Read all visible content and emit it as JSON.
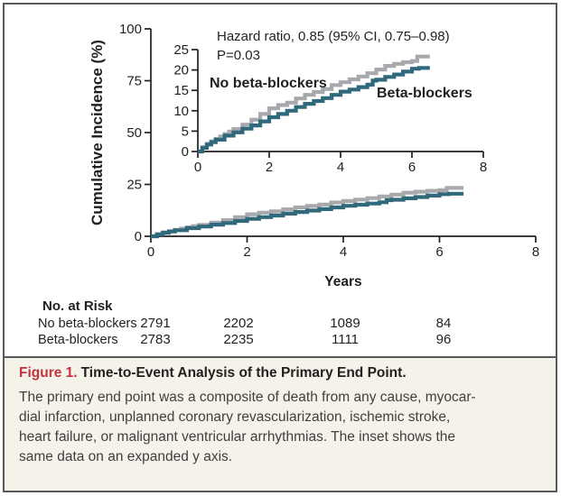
{
  "colors": {
    "curve_no_beta_blockers": "#a7a9ac",
    "curve_beta_blockers": "#31697c",
    "figure_label_red": "#c0353e",
    "frame_border": "#58595b",
    "caption_background": "#f5f2e9",
    "axis_text": "#231f20"
  },
  "chart_data": {
    "type": "line",
    "subtype": "kaplan-meier-cumulative-incidence-step",
    "ylabel": "Cumulative Incidence (%)",
    "xlabel": "Years",
    "annotations": [
      "Hazard ratio, 0.85 (95% CI, 0.75–0.98)",
      "P=0.03"
    ],
    "main_axis": {
      "xlim": [
        0,
        8
      ],
      "ylim": [
        0,
        100
      ],
      "xticks": [
        0,
        2,
        4,
        6,
        8
      ],
      "yticks": [
        0,
        25,
        50,
        75,
        100
      ],
      "grid": false
    },
    "inset_axis": {
      "note": "same data on an expanded y axis",
      "xlim": [
        0,
        8
      ],
      "ylim": [
        0,
        25
      ],
      "xticks": [
        0,
        2,
        4,
        6,
        8
      ],
      "yticks": [
        0,
        5,
        10,
        15,
        20,
        25
      ],
      "grid": false
    },
    "series": [
      {
        "name": "No beta-blockers",
        "color": "#a7a9ac",
        "x": [
          0,
          0.125,
          0.25,
          0.375,
          0.5,
          0.625,
          0.75,
          0.875,
          1,
          1.25,
          1.5,
          1.75,
          2,
          2.25,
          2.5,
          2.75,
          3,
          3.25,
          3.5,
          3.75,
          4,
          4.25,
          4.5,
          4.75,
          5,
          5.25,
          5.5,
          5.75,
          6,
          6.15,
          6.5
        ],
        "y": [
          0,
          1.0,
          1.9,
          2.5,
          3.1,
          3.7,
          4.3,
          4.9,
          5.5,
          6.6,
          7.8,
          9.2,
          10.6,
          11.4,
          12.0,
          13.0,
          13.9,
          14.6,
          15.3,
          16.3,
          17.0,
          17.7,
          18.4,
          19.2,
          20.1,
          21.0,
          21.5,
          21.9,
          22.2,
          23.3,
          23.3
        ]
      },
      {
        "name": "Beta-blockers",
        "color": "#31697c",
        "x": [
          0,
          0.125,
          0.25,
          0.375,
          0.5,
          0.75,
          1,
          1.25,
          1.5,
          1.75,
          2,
          2.25,
          2.5,
          2.75,
          3,
          3.25,
          3.5,
          3.75,
          4,
          4.25,
          4.5,
          4.75,
          4.9,
          5,
          5.25,
          5.5,
          5.75,
          6,
          6.2,
          6.5
        ],
        "y": [
          0,
          0.9,
          1.7,
          2.3,
          2.9,
          3.9,
          4.7,
          5.6,
          6.4,
          7.4,
          8.4,
          9.2,
          10.0,
          10.9,
          11.7,
          12.4,
          13.1,
          13.9,
          14.7,
          15.2,
          15.8,
          16.4,
          17.4,
          17.6,
          18.3,
          18.9,
          19.6,
          20.3,
          20.5,
          20.5
        ]
      }
    ]
  },
  "risk_table": {
    "title": "No. at Risk",
    "count_years": [
      0,
      2,
      4,
      6
    ],
    "rows": [
      {
        "label": "No beta-blockers",
        "counts": [
          "2791",
          "2202",
          "1089",
          "84"
        ]
      },
      {
        "label": "Beta-blockers",
        "counts": [
          "2783",
          "2235",
          "1111",
          "96"
        ]
      }
    ]
  },
  "figure": {
    "label": "Figure 1.",
    "title": "Time-to-Event Analysis of the Primary End Point.",
    "caption_lines": [
      "The primary end point was a composite of death from any cause, myocar-",
      "dial infarction, unplanned coronary revascularization, ischemic stroke,",
      "heart failure, or malignant ventricular arrhythmias. The inset shows the",
      "same data on an expanded y axis."
    ]
  }
}
